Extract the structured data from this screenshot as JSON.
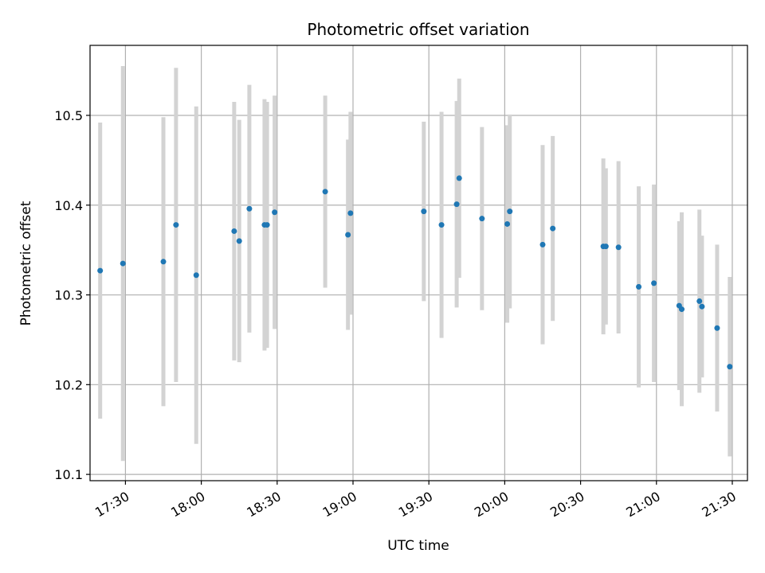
{
  "chart_data": {
    "type": "scatter",
    "title": "Photometric offset variation",
    "xlabel": "UTC time",
    "ylabel": "Photometric offset",
    "xlim": [
      "17:16",
      "21:36"
    ],
    "ylim": [
      10.093,
      10.578
    ],
    "x_ticks": [
      "17:30",
      "18:00",
      "18:30",
      "19:00",
      "19:30",
      "20:00",
      "20:30",
      "21:00",
      "21:30"
    ],
    "y_ticks": [
      "10.1",
      "10.2",
      "10.3",
      "10.4",
      "10.5"
    ],
    "grid": true,
    "legend": "none",
    "colors": {
      "point": "#1f77b4",
      "errorbar": "#d3d3d3",
      "grid": "#b0b0b0"
    },
    "series": [
      {
        "x": [
          "17:20",
          "17:29",
          "17:45",
          "17:50",
          "17:58",
          "18:13",
          "18:15",
          "18:19",
          "18:25",
          "18:26",
          "18:29",
          "18:49",
          "18:58",
          "18:59",
          "19:28",
          "19:35",
          "19:41",
          "19:42",
          "19:51",
          "20:01",
          "20:02",
          "20:15",
          "20:19",
          "20:39",
          "20:40",
          "20:45",
          "20:53",
          "20:59",
          "21:09",
          "21:10",
          "21:17",
          "21:18",
          "21:24",
          "21:29"
        ],
        "y": [
          10.327,
          10.335,
          10.337,
          10.378,
          10.322,
          10.371,
          10.36,
          10.396,
          10.378,
          10.378,
          10.392,
          10.415,
          10.367,
          10.391,
          10.393,
          10.378,
          10.401,
          10.43,
          10.385,
          10.379,
          10.393,
          10.356,
          10.374,
          10.354,
          10.354,
          10.353,
          10.309,
          10.313,
          10.288,
          10.284,
          10.293,
          10.287,
          10.263,
          10.22
        ],
        "err": [
          0.165,
          0.22,
          0.161,
          0.175,
          0.188,
          0.144,
          0.135,
          0.138,
          0.14,
          0.137,
          0.13,
          0.107,
          0.106,
          0.113,
          0.1,
          0.126,
          0.115,
          0.111,
          0.102,
          0.11,
          0.108,
          0.111,
          0.103,
          0.098,
          0.087,
          0.096,
          0.112,
          0.11,
          0.094,
          0.108,
          0.102,
          0.079,
          0.093,
          0.1
        ]
      }
    ]
  }
}
